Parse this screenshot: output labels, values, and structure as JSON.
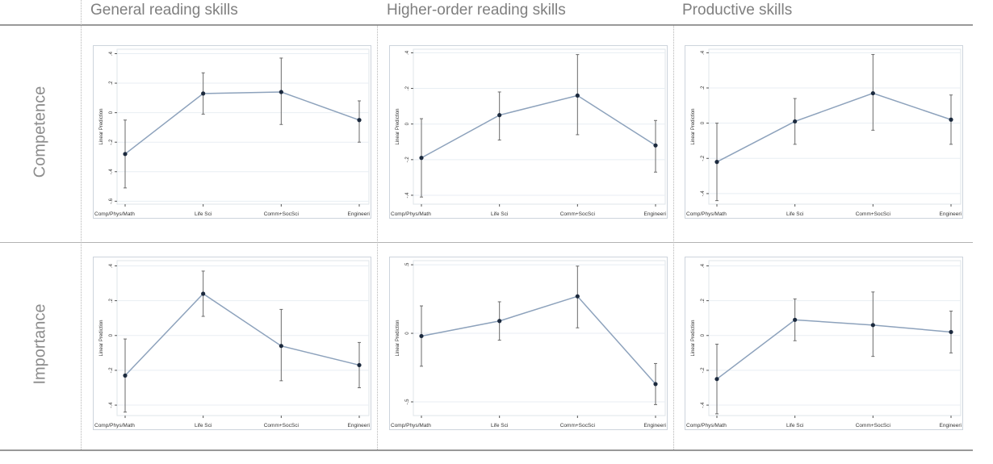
{
  "column_headers": [
    "General reading skills",
    "Higher-order reading skills",
    "Productive skills"
  ],
  "row_labels": [
    "Competence",
    "Importance"
  ],
  "colors": {
    "line": "#8da2bc",
    "marker": "#1c2a3e",
    "ci": "#6a6a6a",
    "grid": "#e8eef3",
    "frame": "#cdd4dc"
  },
  "chart_data": [
    {
      "type": "line",
      "ylabel": "Linear Prediction",
      "categories": [
        "Comp/Phys/Math",
        "Life Sci",
        "Comm+SocSci",
        "Engineeri"
      ],
      "ylim": [
        -0.62,
        0.43
      ],
      "yticks": [
        -0.6,
        -0.4,
        -0.2,
        0,
        0.2,
        0.4
      ],
      "ytick_labels": [
        "-.6",
        "-.4",
        "-.2",
        "0",
        ".2",
        ".4"
      ],
      "values": [
        -0.28,
        0.13,
        0.14,
        -0.05
      ],
      "ci_low": [
        -0.51,
        -0.01,
        -0.08,
        -0.2
      ],
      "ci_high": [
        -0.05,
        0.27,
        0.37,
        0.08
      ]
    },
    {
      "type": "line",
      "ylabel": "Linear Prediction",
      "categories": [
        "Comp/Phys/Math",
        "Life Sci",
        "Comm+SocSci",
        "Engineeri"
      ],
      "ylim": [
        -0.45,
        0.42
      ],
      "yticks": [
        -0.4,
        -0.2,
        0,
        0.2,
        0.4
      ],
      "ytick_labels": [
        "-.4",
        "-.2",
        "0",
        ".2",
        ".4"
      ],
      "values": [
        -0.19,
        0.05,
        0.16,
        -0.12
      ],
      "ci_low": [
        -0.41,
        -0.09,
        -0.06,
        -0.27
      ],
      "ci_high": [
        0.03,
        0.18,
        0.39,
        0.02
      ]
    },
    {
      "type": "line",
      "ylabel": "Linear Prediction",
      "categories": [
        "Comp/Phys/Math",
        "Life Sci",
        "Comm+SocSci",
        "Engineeri"
      ],
      "ylim": [
        -0.46,
        0.42
      ],
      "yticks": [
        -0.4,
        -0.2,
        0,
        0.2,
        0.4
      ],
      "ytick_labels": [
        "-.4",
        "-.2",
        "0",
        ".2",
        ".4"
      ],
      "values": [
        -0.22,
        0.01,
        0.17,
        0.02
      ],
      "ci_low": [
        -0.44,
        -0.12,
        -0.04,
        -0.12
      ],
      "ci_high": [
        0.0,
        0.14,
        0.39,
        0.16
      ]
    },
    {
      "type": "line",
      "ylabel": "Linear Prediction",
      "categories": [
        "Comp/Phys/Math",
        "Life Sci",
        "Comm+SocSci",
        "Engineeri"
      ],
      "ylim": [
        -0.46,
        0.43
      ],
      "yticks": [
        -0.4,
        -0.2,
        0,
        0.2,
        0.4
      ],
      "ytick_labels": [
        "-.4",
        "-.2",
        "0",
        ".2",
        ".4"
      ],
      "values": [
        -0.23,
        0.24,
        -0.06,
        -0.17
      ],
      "ci_low": [
        -0.44,
        0.11,
        -0.26,
        -0.3
      ],
      "ci_high": [
        -0.02,
        0.37,
        0.15,
        -0.04
      ]
    },
    {
      "type": "line",
      "ylabel": "Linear Prediction",
      "categories": [
        "Comp/Phys/Math",
        "Life Sci",
        "Comm+SocSci",
        "Engineeri"
      ],
      "ylim": [
        -0.6,
        0.53
      ],
      "yticks": [
        -0.5,
        0,
        0.5
      ],
      "ytick_labels": [
        "-.5",
        "0",
        ".5"
      ],
      "values": [
        -0.02,
        0.09,
        0.27,
        -0.37
      ],
      "ci_low": [
        -0.24,
        -0.05,
        0.04,
        -0.52
      ],
      "ci_high": [
        0.2,
        0.23,
        0.49,
        -0.22
      ]
    },
    {
      "type": "line",
      "ylabel": "Linear Prediction",
      "categories": [
        "Comp/Phys/Math",
        "Life Sci",
        "Comm+SocSci",
        "Engineeri"
      ],
      "ylim": [
        -0.46,
        0.43
      ],
      "yticks": [
        -0.4,
        -0.2,
        0,
        0.2,
        0.4
      ],
      "ytick_labels": [
        "-.4",
        "-.2",
        "0",
        ".2",
        ".4"
      ],
      "values": [
        -0.25,
        0.09,
        0.06,
        0.02
      ],
      "ci_low": [
        -0.45,
        -0.03,
        -0.12,
        -0.1
      ],
      "ci_high": [
        -0.05,
        0.21,
        0.25,
        0.14
      ]
    }
  ]
}
